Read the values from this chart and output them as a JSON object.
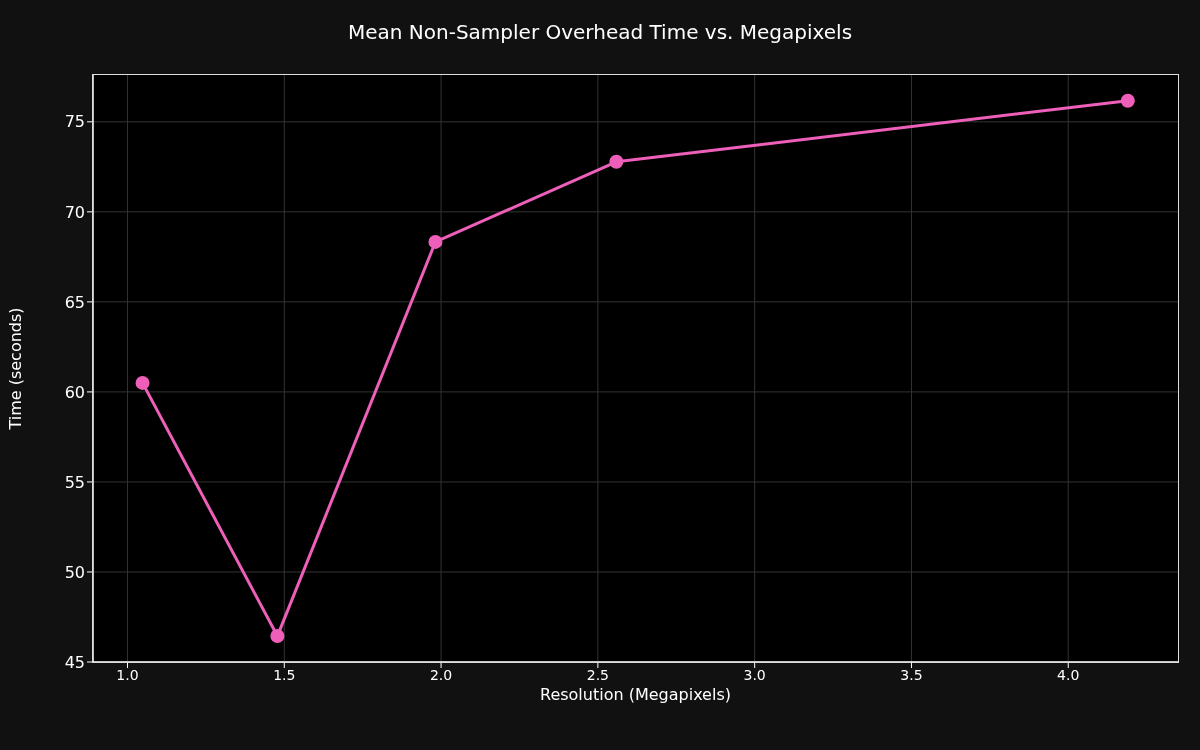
{
  "chart_data": {
    "type": "line",
    "title": "Mean Non-Sampler Overhead Time vs. Megapixels",
    "xlabel": "Resolution (Megapixels)",
    "ylabel": "Time (seconds)",
    "x": [
      1.048,
      1.478,
      1.982,
      2.559,
      4.19
    ],
    "series": [
      {
        "color": "#ee5fba",
        "values": [
          60.5,
          46.44,
          68.33,
          72.78,
          76.17
        ]
      }
    ],
    "xlim": [
      0.89,
      4.35
    ],
    "xticks": [
      {
        "value": 1.0,
        "label": "1.0"
      },
      {
        "value": 1.5,
        "label": "1.5"
      },
      {
        "value": 2.0,
        "label": "2.0"
      },
      {
        "value": 2.5,
        "label": "2.5"
      },
      {
        "value": 3.0,
        "label": "3.0"
      },
      {
        "value": 3.5,
        "label": "3.5"
      },
      {
        "value": 4.0,
        "label": "4.0"
      }
    ],
    "ylim": [
      45,
      77.6
    ],
    "yticks": [
      45,
      50,
      55,
      60,
      65,
      70,
      75
    ],
    "grid": true,
    "marker": "circle",
    "line_style": "solid",
    "legend": false
  }
}
